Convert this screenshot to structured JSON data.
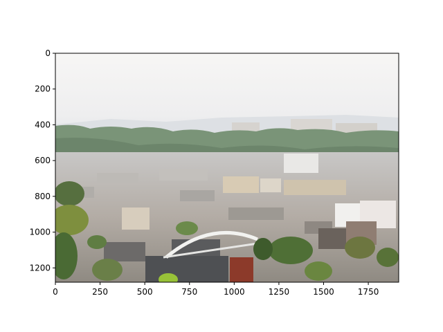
{
  "figure": {
    "image_description_icon": "photo-town-rooftops-icon",
    "xlim": [
      0,
      1920
    ],
    "ylim": [
      1280,
      0
    ],
    "x_ticks": [
      {
        "value": 0,
        "label": "0"
      },
      {
        "value": 250,
        "label": "250"
      },
      {
        "value": 500,
        "label": "500"
      },
      {
        "value": 750,
        "label": "750"
      },
      {
        "value": 1000,
        "label": "1000"
      },
      {
        "value": 1250,
        "label": "1250"
      },
      {
        "value": 1500,
        "label": "1500"
      },
      {
        "value": 1750,
        "label": "1750"
      }
    ],
    "y_ticks": [
      {
        "value": 0,
        "label": "0"
      },
      {
        "value": 200,
        "label": "200"
      },
      {
        "value": 400,
        "label": "400"
      },
      {
        "value": 600,
        "label": "600"
      },
      {
        "value": 800,
        "label": "800"
      },
      {
        "value": 1000,
        "label": "1000"
      },
      {
        "value": 1200,
        "label": "1200"
      }
    ],
    "colors": {
      "sky": "#f5f3f2",
      "haze": "#e9ebee",
      "far_hills": "#d7dbe0",
      "tree_line": "#6f8a72",
      "town_light": "#c9c6c2",
      "town_dark": "#8e8a86",
      "roof_dark": "#4d4f53",
      "foliage": "#5e7a46",
      "bridge": "#f0f0ee"
    }
  }
}
